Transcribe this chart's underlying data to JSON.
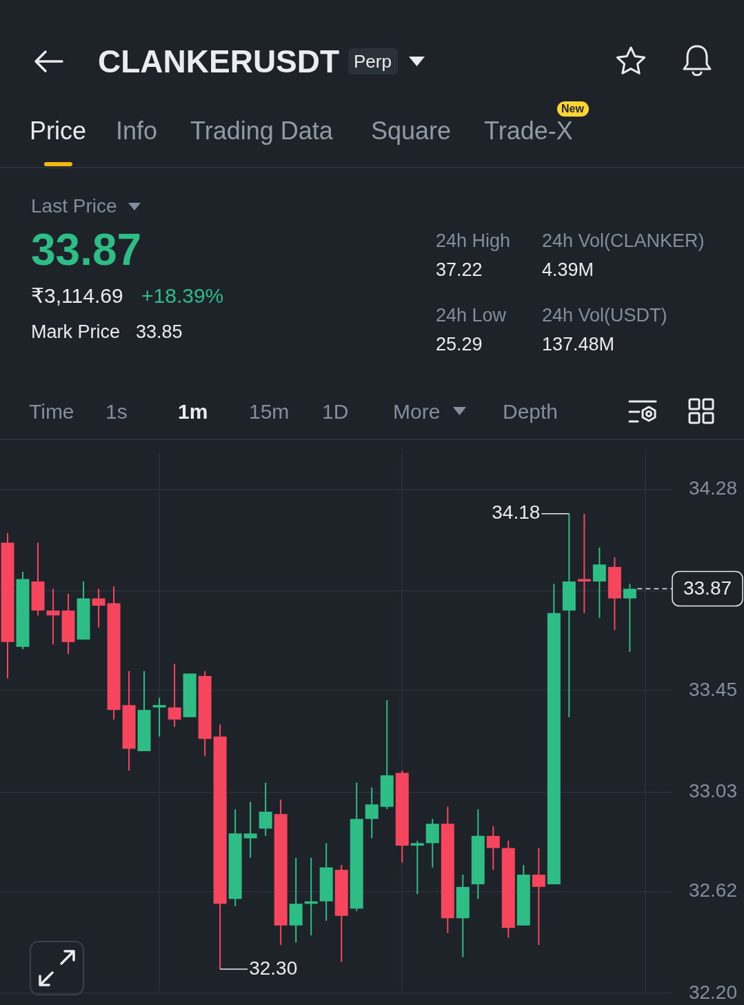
{
  "chart_data": {
    "type": "candlestick",
    "title": "CLANKERUSDT",
    "categories": [
      null,
      null,
      null,
      null,
      null,
      null,
      null,
      null,
      null,
      null,
      null,
      null,
      null,
      null,
      null,
      null,
      null,
      null,
      null,
      null,
      null,
      null,
      null,
      null,
      null,
      null,
      null,
      null,
      null,
      null,
      null,
      null,
      null,
      null,
      null,
      null,
      null,
      null,
      null,
      null,
      null,
      null
    ],
    "ohlc": [
      [
        34.06,
        34.1,
        33.5,
        33.65
      ],
      [
        33.63,
        33.94,
        33.62,
        33.91
      ],
      [
        33.9,
        34.06,
        33.76,
        33.78
      ],
      [
        33.78,
        33.87,
        33.64,
        33.76
      ],
      [
        33.78,
        33.85,
        33.6,
        33.65
      ],
      [
        33.66,
        33.9,
        33.66,
        33.83
      ],
      [
        33.83,
        33.87,
        33.71,
        33.8
      ],
      [
        33.81,
        33.88,
        33.33,
        33.37
      ],
      [
        33.39,
        33.53,
        33.12,
        33.21
      ],
      [
        33.2,
        33.53,
        33.2,
        33.37
      ],
      [
        33.38,
        33.42,
        33.26,
        33.39
      ],
      [
        33.38,
        33.56,
        33.3,
        33.33
      ],
      [
        33.34,
        33.52,
        33.34,
        33.52
      ],
      [
        33.51,
        33.53,
        33.18,
        33.25
      ],
      [
        33.26,
        33.31,
        32.3,
        32.57
      ],
      [
        32.59,
        32.96,
        32.56,
        32.86
      ],
      [
        32.84,
        32.99,
        32.76,
        32.86
      ],
      [
        32.88,
        33.07,
        32.85,
        32.95
      ],
      [
        32.94,
        33.0,
        32.4,
        32.48
      ],
      [
        32.48,
        32.76,
        32.41,
        32.57
      ],
      [
        32.57,
        32.76,
        32.44,
        32.58
      ],
      [
        32.58,
        32.82,
        32.5,
        32.72
      ],
      [
        32.71,
        32.73,
        32.33,
        32.52
      ],
      [
        32.55,
        33.07,
        32.54,
        32.92
      ],
      [
        32.92,
        33.05,
        32.84,
        32.98
      ],
      [
        32.97,
        33.41,
        32.96,
        33.1
      ],
      [
        33.11,
        33.12,
        32.74,
        32.81
      ],
      [
        32.81,
        32.83,
        32.61,
        32.82
      ],
      [
        32.82,
        32.92,
        32.72,
        32.9
      ],
      [
        32.9,
        32.97,
        32.45,
        32.51
      ],
      [
        32.51,
        32.69,
        32.35,
        32.64
      ],
      [
        32.65,
        32.96,
        32.59,
        32.85
      ],
      [
        32.85,
        32.89,
        32.71,
        32.8
      ],
      [
        32.8,
        32.83,
        32.43,
        32.47
      ],
      [
        32.48,
        32.73,
        32.48,
        32.69
      ],
      [
        32.69,
        32.8,
        32.4,
        32.64
      ],
      [
        32.65,
        33.89,
        32.65,
        33.77
      ],
      [
        33.78,
        34.18,
        33.34,
        33.9
      ],
      [
        33.91,
        34.18,
        33.77,
        33.9
      ],
      [
        33.9,
        34.04,
        33.75,
        33.97
      ],
      [
        33.96,
        34.0,
        33.7,
        33.83
      ],
      [
        33.83,
        33.89,
        33.61,
        33.87
      ]
    ],
    "colors": [
      "#f6465d",
      "#2ebd85",
      "#f6465d",
      "#f6465d",
      "#f6465d",
      "#2ebd85",
      "#f6465d",
      "#f6465d",
      "#f6465d",
      "#2ebd85",
      "#2ebd85",
      "#f6465d",
      "#2ebd85",
      "#f6465d",
      "#f6465d",
      "#2ebd85",
      "#2ebd85",
      "#2ebd85",
      "#f6465d",
      "#2ebd85",
      "#2ebd85",
      "#2ebd85",
      "#f6465d",
      "#2ebd85",
      "#2ebd85",
      "#2ebd85",
      "#f6465d",
      "#2ebd85",
      "#2ebd85",
      "#f6465d",
      "#2ebd85",
      "#2ebd85",
      "#f6465d",
      "#f6465d",
      "#2ebd85",
      "#f6465d",
      "#2ebd85",
      "#2ebd85",
      "#f6465d",
      "#2ebd85",
      "#f6465d",
      "#2ebd85"
    ],
    "ylim": [
      32.2,
      34.43
    ],
    "yticks": [
      34.28,
      {
        "value": 33.86,
        "label": null
      },
      33.45,
      33.03,
      32.62,
      {
        "value": 32.2,
        "label": "32.20"
      }
    ],
    "grid": true,
    "tick_labels": "y",
    "ref_lines": [
      {
        "axis": "y",
        "value": 33.87,
        "label": "33.87",
        "color": "#eaecef",
        "line_style": "dashed"
      }
    ],
    "annotations": [
      "Perp",
      "Price",
      "Info",
      "Trading Data",
      "Square",
      "Trade-X",
      "New",
      "Last Price",
      "33.87",
      "₹3,114.69",
      "+18.39%",
      "Mark Price",
      "33.85",
      "24h High",
      "37.22",
      "24h Vol(CLANKER)",
      "4.39M",
      "24h Low",
      "25.29",
      "24h Vol(USDT)",
      "137.48M",
      "Time",
      "1s",
      "1m",
      "15m",
      "1D",
      "More",
      "Depth",
      "34.18",
      "32.30"
    ]
  }
}
